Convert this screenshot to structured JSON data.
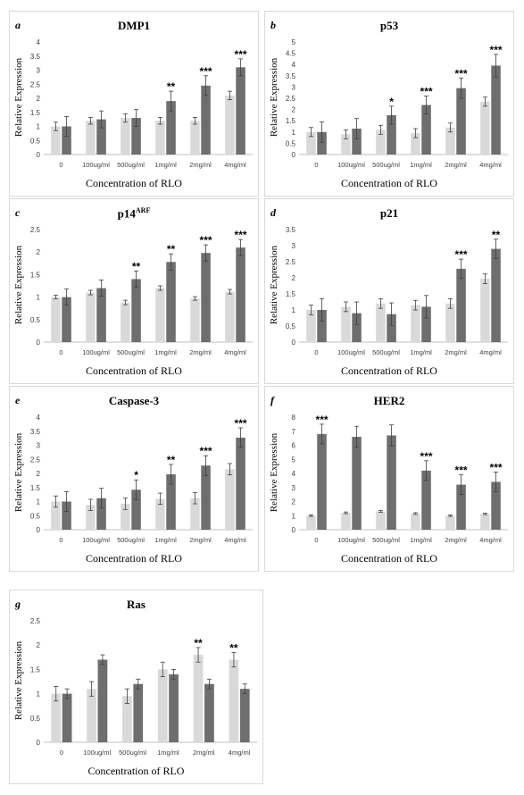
{
  "figure": {
    "colors": {
      "control": "#d9d9d9",
      "treated": "#6e6e6e",
      "error": "#404040",
      "axis": "#bfbfbf"
    }
  },
  "chart_data": [
    {
      "type": "bar",
      "letter": "a",
      "title": "DMP1",
      "title_sup": "",
      "xlabel": "Concentration of RLO",
      "ylabel": "Relative Expression",
      "categories": [
        "0",
        "100ug/ml",
        "500ug/ml",
        "1mg/ml",
        "2mg/ml",
        "4mg/ml"
      ],
      "ylim": [
        0,
        4
      ],
      "yticks": [
        "0",
        "0.5",
        "1",
        "1.5",
        "2",
        "2.5",
        "3",
        "3.5",
        "4"
      ],
      "series": [
        {
          "values": [
            1.0,
            1.2,
            1.3,
            1.2,
            1.2,
            2.1
          ],
          "errors": [
            0.15,
            0.12,
            0.15,
            0.12,
            0.12,
            0.15
          ]
        },
        {
          "values": [
            1.0,
            1.25,
            1.3,
            1.9,
            2.45,
            3.1
          ],
          "errors": [
            0.35,
            0.3,
            0.3,
            0.35,
            0.35,
            0.3
          ]
        }
      ],
      "significance": [
        "",
        "",
        "",
        "**",
        "***",
        "***"
      ]
    },
    {
      "type": "bar",
      "letter": "b",
      "title": "p53",
      "title_sup": "",
      "xlabel": "Concentration of RLO",
      "ylabel": "Relative Expression",
      "categories": [
        "0",
        "100ug/ml",
        "500ug/ml",
        "1mg/ml",
        "2mg/ml",
        "4mg/ml"
      ],
      "ylim": [
        0,
        5
      ],
      "yticks": [
        "0",
        "0.5",
        "1",
        "1.5",
        "2",
        "2.5",
        "3",
        "3.5",
        "4",
        "4.5",
        "5"
      ],
      "series": [
        {
          "values": [
            1.0,
            0.9,
            1.1,
            0.95,
            1.2,
            2.35
          ],
          "errors": [
            0.2,
            0.2,
            0.2,
            0.2,
            0.2,
            0.2
          ]
        },
        {
          "values": [
            1.0,
            1.15,
            1.75,
            2.2,
            2.95,
            3.95
          ],
          "errors": [
            0.45,
            0.45,
            0.4,
            0.4,
            0.45,
            0.5
          ]
        }
      ],
      "significance": [
        "",
        "",
        "*",
        "***",
        "***",
        "***"
      ]
    },
    {
      "type": "bar",
      "letter": "c",
      "title": "p14",
      "title_sup": "ARF",
      "xlabel": "Concentration of RLO",
      "ylabel": "Relative Expression",
      "categories": [
        "0",
        "100ug/ml",
        "500ug/ml",
        "1mg/ml",
        "2mg/ml",
        "4mg/ml"
      ],
      "ylim": [
        0,
        2.5
      ],
      "yticks": [
        "0",
        "0.5",
        "1",
        "1.5",
        "2",
        "2.5"
      ],
      "series": [
        {
          "values": [
            1.0,
            1.1,
            0.88,
            1.2,
            0.97,
            1.12
          ],
          "errors": [
            0.04,
            0.05,
            0.05,
            0.05,
            0.04,
            0.05
          ]
        },
        {
          "values": [
            1.0,
            1.2,
            1.4,
            1.78,
            1.98,
            2.1
          ],
          "errors": [
            0.18,
            0.18,
            0.18,
            0.18,
            0.18,
            0.18
          ]
        }
      ],
      "significance": [
        "",
        "",
        "**",
        "**",
        "***",
        "***"
      ]
    },
    {
      "type": "bar",
      "letter": "d",
      "title": "p21",
      "title_sup": "",
      "xlabel": "Concentration of RLO",
      "ylabel": "Relative Expression",
      "categories": [
        "0",
        "100ug/ml",
        "500ug/ml",
        "1mg/ml",
        "2mg/ml",
        "4mg/ml"
      ],
      "ylim": [
        0,
        3.5
      ],
      "yticks": [
        "0",
        "0.5",
        "1",
        "1.5",
        "2",
        "2.5",
        "3",
        "3.5"
      ],
      "series": [
        {
          "values": [
            1.0,
            1.1,
            1.2,
            1.15,
            1.2,
            1.97
          ],
          "errors": [
            0.15,
            0.15,
            0.15,
            0.15,
            0.15,
            0.15
          ]
        },
        {
          "values": [
            1.0,
            0.9,
            0.87,
            1.1,
            2.28,
            2.9
          ],
          "errors": [
            0.35,
            0.35,
            0.35,
            0.35,
            0.3,
            0.3
          ]
        }
      ],
      "significance": [
        "",
        "",
        "",
        "",
        "***",
        "**"
      ]
    },
    {
      "type": "bar",
      "letter": "e",
      "title": "Caspase-3",
      "title_sup": "",
      "xlabel": "Concentration of RLO",
      "ylabel": "Relative Expression",
      "categories": [
        "0",
        "100ug/ml",
        "500ug/ml",
        "1mg/ml",
        "2mg/ml",
        "4mg/ml"
      ],
      "ylim": [
        0,
        4
      ],
      "yticks": [
        "0",
        "0.5",
        "1",
        "1.5",
        "2",
        "2.5",
        "3",
        "3.5",
        "4"
      ],
      "series": [
        {
          "values": [
            1.0,
            0.88,
            0.92,
            1.1,
            1.12,
            2.15
          ],
          "errors": [
            0.2,
            0.2,
            0.2,
            0.2,
            0.2,
            0.2
          ]
        },
        {
          "values": [
            1.0,
            1.12,
            1.42,
            1.97,
            2.28,
            3.27
          ],
          "errors": [
            0.35,
            0.35,
            0.35,
            0.35,
            0.35,
            0.35
          ]
        }
      ],
      "significance": [
        "",
        "",
        "*",
        "**",
        "***",
        "***"
      ]
    },
    {
      "type": "bar",
      "letter": "f",
      "title": "HER2",
      "title_sup": "",
      "xlabel": "Concentration of RLO",
      "ylabel": "Relative Expression",
      "categories": [
        "0",
        "100ug/ml",
        "500ug/ml",
        "1mg/ml",
        "2mg/ml",
        "4mg/ml"
      ],
      "ylim": [
        0,
        8
      ],
      "yticks": [
        "0",
        "1",
        "2",
        "3",
        "4",
        "5",
        "6",
        "7",
        "8"
      ],
      "series": [
        {
          "values": [
            1.0,
            1.2,
            1.3,
            1.15,
            1.0,
            1.12
          ],
          "errors": [
            0.05,
            0.06,
            0.06,
            0.06,
            0.05,
            0.05
          ]
        },
        {
          "values": [
            6.8,
            6.6,
            6.7,
            4.2,
            3.2,
            3.4
          ],
          "errors": [
            0.7,
            0.75,
            0.75,
            0.7,
            0.7,
            0.7
          ]
        }
      ],
      "significance": [
        "***",
        "",
        "",
        "***",
        "***",
        "***"
      ]
    },
    {
      "type": "bar",
      "letter": "g",
      "title": "Ras",
      "title_sup": "",
      "xlabel": "Concentration of RLO",
      "ylabel": "Relative Expression",
      "categories": [
        "0",
        "100ug/ml",
        "500ug/ml",
        "1mg/ml",
        "2mg/ml",
        "4mg/ml"
      ],
      "ylim": [
        0,
        2.5
      ],
      "yticks": [
        "0",
        "0.5",
        "1",
        "1.5",
        "2",
        "2.5"
      ],
      "series": [
        {
          "values": [
            1.0,
            1.1,
            0.95,
            1.5,
            1.8,
            1.7
          ],
          "errors": [
            0.15,
            0.15,
            0.15,
            0.15,
            0.15,
            0.15
          ]
        },
        {
          "values": [
            1.0,
            1.7,
            1.2,
            1.4,
            1.2,
            1.1
          ],
          "errors": [
            0.1,
            0.1,
            0.1,
            0.1,
            0.1,
            0.1
          ]
        }
      ],
      "significance": [
        "",
        "",
        "",
        "",
        "**",
        "**"
      ],
      "significance_on": "control"
    }
  ]
}
